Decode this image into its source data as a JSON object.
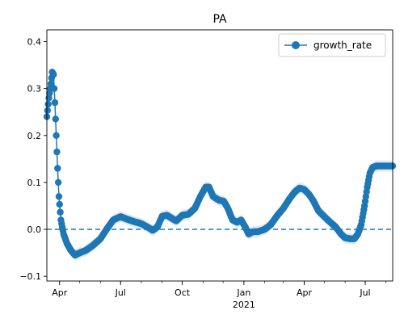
{
  "chart_data": {
    "type": "line",
    "title": "PA",
    "xlabel": "",
    "ylabel": "",
    "x_range": [
      "2020-03-13",
      "2021-08-11"
    ],
    "ylim": [
      -0.11,
      0.425
    ],
    "y_ticks": [
      -0.1,
      0.0,
      0.1,
      0.2,
      0.3,
      0.4
    ],
    "y_tick_labels": [
      "−0.1",
      "0.0",
      "0.1",
      "0.2",
      "0.3",
      "0.4"
    ],
    "x_ticks": [
      {
        "date": "2020-04-01",
        "label": "Apr"
      },
      {
        "date": "2020-07-01",
        "label": "Jul"
      },
      {
        "date": "2020-10-01",
        "label": "Oct"
      },
      {
        "date": "2021-01-01",
        "label": "Jan",
        "sublabel": "2021"
      },
      {
        "date": "2021-04-01",
        "label": "Apr"
      },
      {
        "date": "2021-07-01",
        "label": "Jul"
      }
    ],
    "grid": false,
    "legend_position": "top-right",
    "reference_line": {
      "y": 0.0,
      "style": "dashed"
    },
    "colors": {
      "series": "#1f77b4",
      "band": "#d6e6f4"
    },
    "series": [
      {
        "name": "growth_rate",
        "marker": "circle",
        "band_width": 0.012,
        "points": [
          {
            "x": "2020-03-13",
            "y": 0.24
          },
          {
            "x": "2020-03-16",
            "y": 0.28
          },
          {
            "x": "2020-03-19",
            "y": 0.31
          },
          {
            "x": "2020-03-21",
            "y": 0.335
          },
          {
            "x": "2020-03-23",
            "y": 0.33
          },
          {
            "x": "2020-03-25",
            "y": 0.27
          },
          {
            "x": "2020-03-27",
            "y": 0.2
          },
          {
            "x": "2020-03-29",
            "y": 0.13
          },
          {
            "x": "2020-03-31",
            "y": 0.07
          },
          {
            "x": "2020-04-03",
            "y": 0.02
          },
          {
            "x": "2020-04-07",
            "y": -0.01
          },
          {
            "x": "2020-04-12",
            "y": -0.03
          },
          {
            "x": "2020-04-18",
            "y": -0.045
          },
          {
            "x": "2020-04-24",
            "y": -0.055
          },
          {
            "x": "2020-05-01",
            "y": -0.05
          },
          {
            "x": "2020-05-10",
            "y": -0.045
          },
          {
            "x": "2020-05-20",
            "y": -0.035
          },
          {
            "x": "2020-06-01",
            "y": -0.02
          },
          {
            "x": "2020-06-10",
            "y": 0.0
          },
          {
            "x": "2020-06-20",
            "y": 0.02
          },
          {
            "x": "2020-07-01",
            "y": 0.027
          },
          {
            "x": "2020-07-10",
            "y": 0.022
          },
          {
            "x": "2020-07-20",
            "y": 0.017
          },
          {
            "x": "2020-08-01",
            "y": 0.012
          },
          {
            "x": "2020-08-10",
            "y": 0.005
          },
          {
            "x": "2020-08-18",
            "y": -0.002
          },
          {
            "x": "2020-08-25",
            "y": 0.005
          },
          {
            "x": "2020-09-01",
            "y": 0.028
          },
          {
            "x": "2020-09-08",
            "y": 0.03
          },
          {
            "x": "2020-09-15",
            "y": 0.024
          },
          {
            "x": "2020-09-22",
            "y": 0.018
          },
          {
            "x": "2020-10-01",
            "y": 0.03
          },
          {
            "x": "2020-10-10",
            "y": 0.032
          },
          {
            "x": "2020-10-20",
            "y": 0.045
          },
          {
            "x": "2020-10-28",
            "y": 0.07
          },
          {
            "x": "2020-11-05",
            "y": 0.09
          },
          {
            "x": "2020-11-10",
            "y": 0.09
          },
          {
            "x": "2020-11-16",
            "y": 0.07
          },
          {
            "x": "2020-11-25",
            "y": 0.062
          },
          {
            "x": "2020-12-02",
            "y": 0.06
          },
          {
            "x": "2020-12-08",
            "y": 0.045
          },
          {
            "x": "2020-12-15",
            "y": 0.02
          },
          {
            "x": "2020-12-22",
            "y": 0.015
          },
          {
            "x": "2020-12-28",
            "y": 0.02
          },
          {
            "x": "2021-01-03",
            "y": 0.005
          },
          {
            "x": "2021-01-08",
            "y": -0.01
          },
          {
            "x": "2021-01-15",
            "y": -0.005
          },
          {
            "x": "2021-01-22",
            "y": -0.005
          },
          {
            "x": "2021-02-01",
            "y": 0.0
          },
          {
            "x": "2021-02-10",
            "y": 0.01
          },
          {
            "x": "2021-02-20",
            "y": 0.03
          },
          {
            "x": "2021-03-01",
            "y": 0.045
          },
          {
            "x": "2021-03-10",
            "y": 0.065
          },
          {
            "x": "2021-03-18",
            "y": 0.08
          },
          {
            "x": "2021-03-25",
            "y": 0.088
          },
          {
            "x": "2021-04-01",
            "y": 0.085
          },
          {
            "x": "2021-04-08",
            "y": 0.075
          },
          {
            "x": "2021-04-15",
            "y": 0.06
          },
          {
            "x": "2021-04-22",
            "y": 0.04
          },
          {
            "x": "2021-05-01",
            "y": 0.027
          },
          {
            "x": "2021-05-10",
            "y": 0.015
          },
          {
            "x": "2021-05-18",
            "y": 0.005
          },
          {
            "x": "2021-05-26",
            "y": -0.01
          },
          {
            "x": "2021-06-01",
            "y": -0.018
          },
          {
            "x": "2021-06-08",
            "y": -0.02
          },
          {
            "x": "2021-06-15",
            "y": -0.02
          },
          {
            "x": "2021-06-20",
            "y": -0.01
          },
          {
            "x": "2021-06-25",
            "y": 0.01
          },
          {
            "x": "2021-06-30",
            "y": 0.05
          },
          {
            "x": "2021-07-04",
            "y": 0.09
          },
          {
            "x": "2021-07-08",
            "y": 0.12
          },
          {
            "x": "2021-07-12",
            "y": 0.132
          },
          {
            "x": "2021-07-18",
            "y": 0.135
          },
          {
            "x": "2021-08-11",
            "y": 0.135
          }
        ]
      }
    ]
  }
}
